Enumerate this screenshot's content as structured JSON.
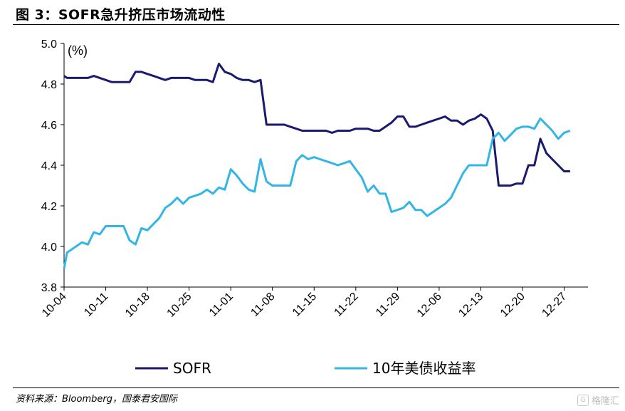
{
  "title": "图 3：SOFR急升挤压市场流动性",
  "source": "资料来源：Bloomberg，国泰君安国际",
  "watermark": "格隆汇",
  "chart_data": {
    "type": "line",
    "unit_label": "(%)",
    "ylim": [
      3.8,
      5.0
    ],
    "yticks": [
      "3.8",
      "4.0",
      "4.2",
      "4.4",
      "4.6",
      "4.8",
      "5.0"
    ],
    "yticks_values": [
      3.8,
      4.0,
      4.2,
      4.4,
      4.6,
      4.8,
      5.0
    ],
    "xlim": [
      0,
      88
    ],
    "xtick_labels": [
      "10-04",
      "10-11",
      "10-18",
      "10-25",
      "11-01",
      "11-08",
      "11-15",
      "11-22",
      "11-29",
      "12-06",
      "12-13",
      "12-20",
      "12-27"
    ],
    "xtick_positions": [
      0,
      7,
      14,
      21,
      28,
      35,
      42,
      49,
      56,
      63,
      70,
      77,
      84
    ],
    "series": [
      {
        "name": "SOFR",
        "color": "#1a1a6e",
        "points": [
          [
            0,
            4.84
          ],
          [
            0.5,
            4.83
          ],
          [
            1,
            4.83
          ],
          [
            3,
            4.83
          ],
          [
            4,
            4.83
          ],
          [
            5,
            4.84
          ],
          [
            7,
            4.82
          ],
          [
            8,
            4.81
          ],
          [
            9,
            4.81
          ],
          [
            10,
            4.81
          ],
          [
            11,
            4.81
          ],
          [
            12,
            4.86
          ],
          [
            13,
            4.86
          ],
          [
            14,
            4.85
          ],
          [
            15,
            4.84
          ],
          [
            16,
            4.83
          ],
          [
            17,
            4.82
          ],
          [
            18,
            4.83
          ],
          [
            19,
            4.83
          ],
          [
            20,
            4.83
          ],
          [
            21,
            4.83
          ],
          [
            22,
            4.82
          ],
          [
            23,
            4.82
          ],
          [
            24,
            4.82
          ],
          [
            25,
            4.81
          ],
          [
            26,
            4.9
          ],
          [
            27,
            4.86
          ],
          [
            28,
            4.85
          ],
          [
            29,
            4.83
          ],
          [
            30,
            4.82
          ],
          [
            31,
            4.82
          ],
          [
            32,
            4.81
          ],
          [
            33,
            4.82
          ],
          [
            34,
            4.6
          ],
          [
            35,
            4.6
          ],
          [
            36,
            4.6
          ],
          [
            37,
            4.6
          ],
          [
            38,
            4.59
          ],
          [
            39,
            4.58
          ],
          [
            40,
            4.57
          ],
          [
            41,
            4.57
          ],
          [
            42,
            4.57
          ],
          [
            43,
            4.57
          ],
          [
            44,
            4.57
          ],
          [
            45,
            4.56
          ],
          [
            46,
            4.57
          ],
          [
            47,
            4.57
          ],
          [
            48,
            4.57
          ],
          [
            49,
            4.58
          ],
          [
            50,
            4.58
          ],
          [
            51,
            4.58
          ],
          [
            52,
            4.57
          ],
          [
            53,
            4.57
          ],
          [
            54,
            4.59
          ],
          [
            55,
            4.61
          ],
          [
            56,
            4.64
          ],
          [
            57,
            4.64
          ],
          [
            58,
            4.59
          ],
          [
            59,
            4.59
          ],
          [
            60,
            4.6
          ],
          [
            61,
            4.61
          ],
          [
            62,
            4.62
          ],
          [
            63,
            4.63
          ],
          [
            64,
            4.64
          ],
          [
            65,
            4.62
          ],
          [
            66,
            4.62
          ],
          [
            67,
            4.6
          ],
          [
            68,
            4.62
          ],
          [
            69,
            4.63
          ],
          [
            70,
            4.65
          ],
          [
            71,
            4.63
          ],
          [
            72,
            4.57
          ],
          [
            73,
            4.3
          ],
          [
            74,
            4.3
          ],
          [
            75,
            4.3
          ],
          [
            76,
            4.31
          ],
          [
            77,
            4.31
          ],
          [
            78,
            4.4
          ],
          [
            79,
            4.4
          ],
          [
            80,
            4.53
          ],
          [
            81,
            4.46
          ],
          [
            82,
            4.43
          ],
          [
            83,
            4.4
          ],
          [
            84,
            4.37
          ],
          [
            85,
            4.37
          ]
        ]
      },
      {
        "name": "10年美债收益率",
        "color": "#33b5e5",
        "points": [
          [
            0,
            3.89
          ],
          [
            0.5,
            3.97
          ],
          [
            1,
            3.98
          ],
          [
            3,
            4.02
          ],
          [
            4,
            4.01
          ],
          [
            5,
            4.07
          ],
          [
            6,
            4.06
          ],
          [
            7,
            4.1
          ],
          [
            8,
            4.1
          ],
          [
            9,
            4.1
          ],
          [
            10,
            4.1
          ],
          [
            11,
            4.03
          ],
          [
            12,
            4.01
          ],
          [
            13,
            4.09
          ],
          [
            14,
            4.08
          ],
          [
            15,
            4.11
          ],
          [
            16,
            4.14
          ],
          [
            17,
            4.19
          ],
          [
            18,
            4.21
          ],
          [
            19,
            4.24
          ],
          [
            20,
            4.21
          ],
          [
            21,
            4.24
          ],
          [
            22,
            4.25
          ],
          [
            23,
            4.26
          ],
          [
            24,
            4.28
          ],
          [
            25,
            4.26
          ],
          [
            26,
            4.29
          ],
          [
            27,
            4.28
          ],
          [
            28,
            4.38
          ],
          [
            29,
            4.35
          ],
          [
            30,
            4.31
          ],
          [
            31,
            4.28
          ],
          [
            32,
            4.27
          ],
          [
            33,
            4.43
          ],
          [
            34,
            4.32
          ],
          [
            35,
            4.3
          ],
          [
            36,
            4.3
          ],
          [
            37,
            4.3
          ],
          [
            38,
            4.3
          ],
          [
            39,
            4.42
          ],
          [
            40,
            4.45
          ],
          [
            41,
            4.43
          ],
          [
            42,
            4.44
          ],
          [
            43,
            4.43
          ],
          [
            44,
            4.42
          ],
          [
            45,
            4.41
          ],
          [
            46,
            4.4
          ],
          [
            47,
            4.41
          ],
          [
            48,
            4.42
          ],
          [
            49,
            4.38
          ],
          [
            50,
            4.34
          ],
          [
            51,
            4.27
          ],
          [
            52,
            4.3
          ],
          [
            53,
            4.26
          ],
          [
            54,
            4.26
          ],
          [
            55,
            4.17
          ],
          [
            56,
            4.18
          ],
          [
            57,
            4.19
          ],
          [
            58,
            4.22
          ],
          [
            59,
            4.18
          ],
          [
            60,
            4.18
          ],
          [
            61,
            4.15
          ],
          [
            62,
            4.17
          ],
          [
            63,
            4.19
          ],
          [
            64,
            4.21
          ],
          [
            65,
            4.24
          ],
          [
            66,
            4.3
          ],
          [
            67,
            4.36
          ],
          [
            68,
            4.4
          ],
          [
            69,
            4.4
          ],
          [
            70,
            4.4
          ],
          [
            71,
            4.4
          ],
          [
            72,
            4.53
          ],
          [
            73,
            4.56
          ],
          [
            74,
            4.52
          ],
          [
            75,
            4.55
          ],
          [
            76,
            4.58
          ],
          [
            77,
            4.59
          ],
          [
            78,
            4.59
          ],
          [
            79,
            4.58
          ],
          [
            80,
            4.63
          ],
          [
            81,
            4.6
          ],
          [
            82,
            4.57
          ],
          [
            83,
            4.53
          ],
          [
            84,
            4.56
          ],
          [
            85,
            4.57
          ]
        ]
      }
    ],
    "legend": [
      "SOFR",
      "10年美债收益率"
    ]
  }
}
